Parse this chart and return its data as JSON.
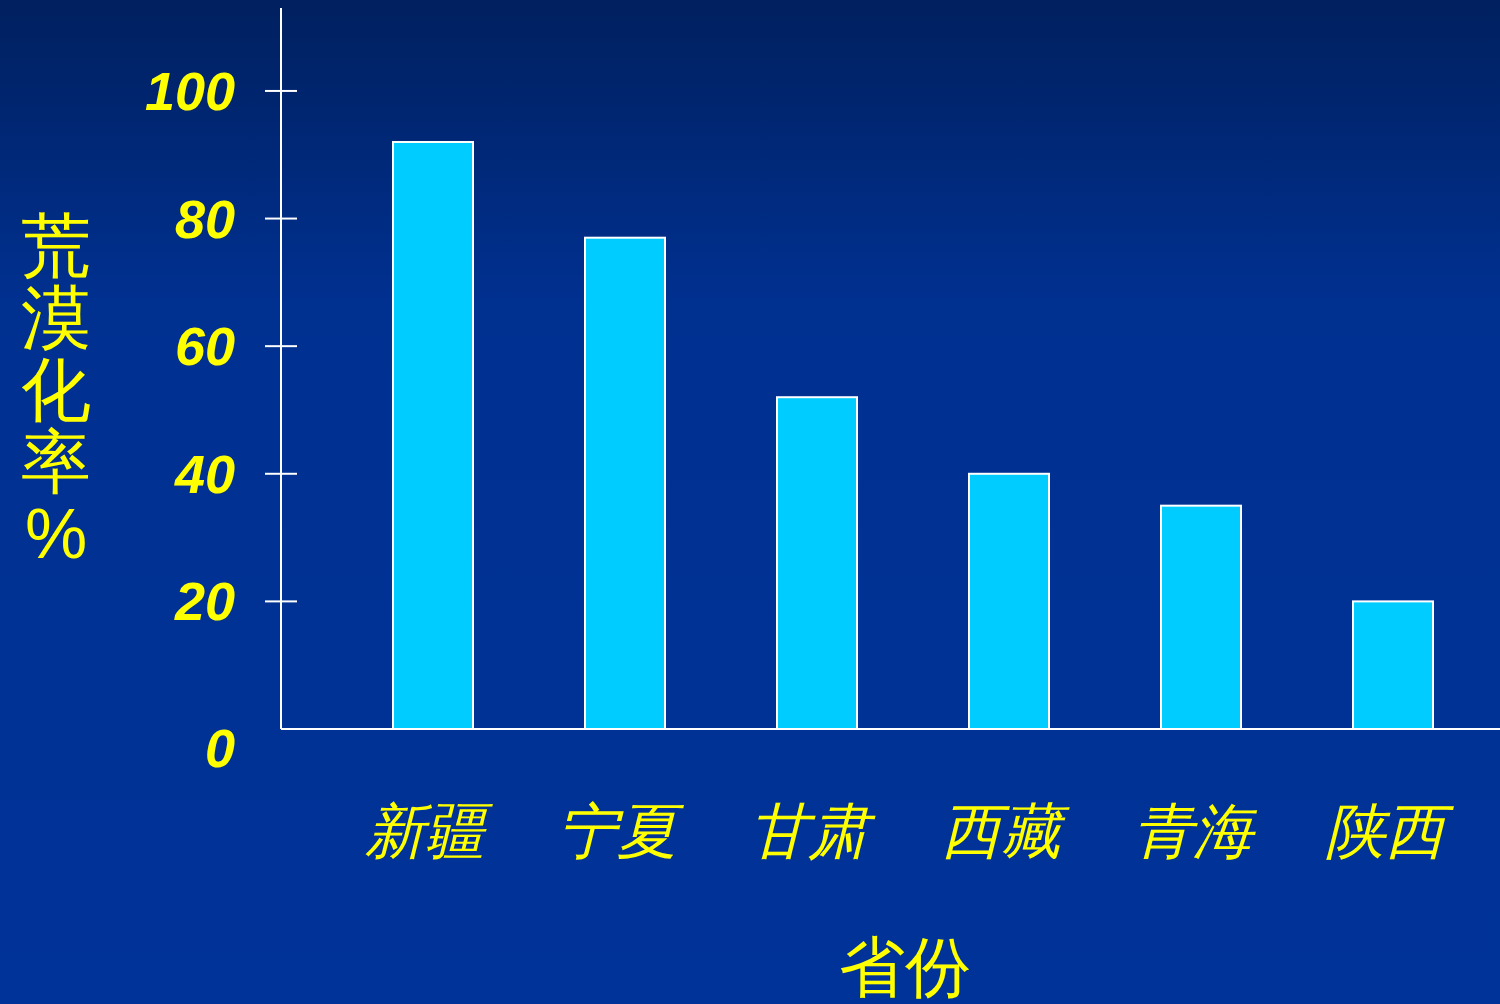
{
  "chart_data": {
    "type": "bar",
    "xlabel": "省份",
    "ylabel": "荒漠化率%",
    "categories": [
      "新疆",
      "宁夏",
      "甘肃",
      "西藏",
      "青海",
      "陕西"
    ],
    "values": [
      92,
      77,
      52,
      40,
      35,
      20
    ],
    "color": "#00ccff",
    "ylim": [
      0,
      113
    ],
    "yticks": [
      0,
      20,
      40,
      60,
      80,
      100
    ]
  }
}
